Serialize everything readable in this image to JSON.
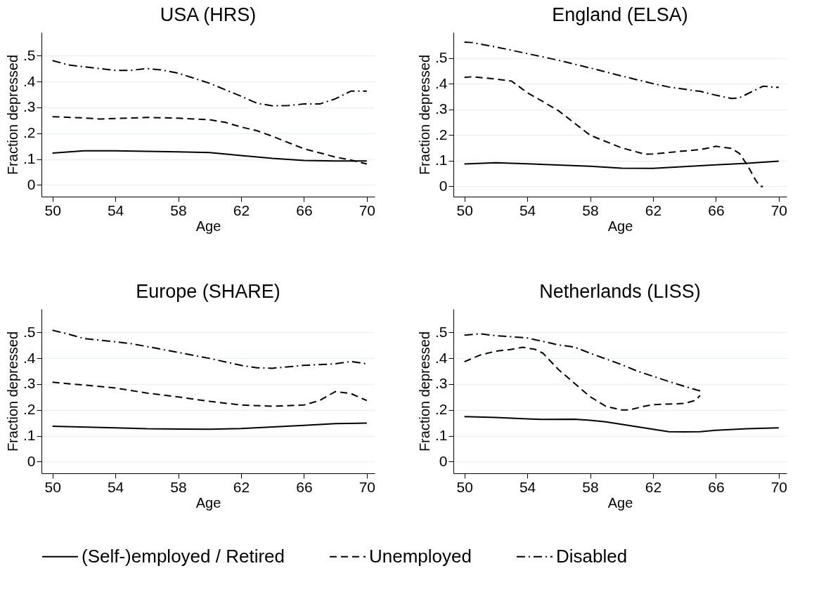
{
  "chart_data": [
    {
      "type": "line",
      "title": "USA (HRS)",
      "xlabel": "Age",
      "ylabel": "Fraction depressed",
      "xlim": [
        49.3,
        70.5
      ],
      "ylim": [
        -0.045,
        0.59
      ],
      "xticks": [
        50,
        54,
        58,
        62,
        66,
        70
      ],
      "yticks": [
        {
          "value": 0,
          "label": "0"
        },
        {
          "value": 0.1,
          "label": ".1"
        },
        {
          "value": 0.2,
          "label": ".2"
        },
        {
          "value": 0.3,
          "label": ".3"
        },
        {
          "value": 0.4,
          "label": ".4"
        },
        {
          "value": 0.5,
          "label": ".5"
        }
      ],
      "grid": "y",
      "legend": "bottom",
      "marker": "none",
      "series": [
        {
          "name": "(Self-)employed / Retired",
          "color": "#000000",
          "line_style": "solid",
          "x": [
            50,
            52,
            54,
            58,
            60,
            62,
            64,
            66,
            68,
            70
          ],
          "values": [
            0.123,
            0.132,
            0.132,
            0.128,
            0.125,
            0.114,
            0.103,
            0.095,
            0.093,
            0.093
          ]
        },
        {
          "name": "Unemployed",
          "color": "#000000",
          "line_style": "dashed",
          "x": [
            50,
            52,
            53,
            56,
            58,
            60,
            61,
            62,
            63,
            64,
            66,
            68,
            69,
            70
          ],
          "values": [
            0.264,
            0.259,
            0.255,
            0.261,
            0.258,
            0.252,
            0.242,
            0.224,
            0.21,
            0.188,
            0.14,
            0.108,
            0.096,
            0.081
          ]
        },
        {
          "name": "Disabled",
          "color": "#000000",
          "line_style": "dashdot",
          "x": [
            50,
            51,
            52,
            54,
            55,
            56,
            57,
            58,
            60,
            62,
            63,
            64,
            65,
            66,
            67,
            68,
            69,
            70
          ],
          "values": [
            0.481,
            0.464,
            0.457,
            0.443,
            0.443,
            0.45,
            0.444,
            0.432,
            0.393,
            0.343,
            0.316,
            0.306,
            0.307,
            0.313,
            0.313,
            0.333,
            0.363,
            0.363
          ]
        }
      ]
    },
    {
      "type": "line",
      "title": "England (ELSA)",
      "xlabel": "Age",
      "ylabel": "Fraction depressed",
      "xlim": [
        49.3,
        70.5
      ],
      "ylim": [
        -0.04,
        0.6
      ],
      "xticks": [
        50,
        54,
        58,
        62,
        66,
        70
      ],
      "yticks": [
        {
          "value": 0,
          "label": "0"
        },
        {
          "value": 0.1,
          "label": ".1"
        },
        {
          "value": 0.2,
          "label": ".2"
        },
        {
          "value": 0.3,
          "label": ".3"
        },
        {
          "value": 0.4,
          "label": ".4"
        },
        {
          "value": 0.5,
          "label": ".5"
        }
      ],
      "grid": "y",
      "legend": "bottom",
      "marker": "none",
      "series": [
        {
          "name": "(Self-)employed / Retired",
          "color": "#000000",
          "line_style": "solid",
          "x": [
            50,
            52,
            54,
            58,
            60,
            62,
            64,
            66,
            68,
            70
          ],
          "values": [
            0.087,
            0.092,
            0.088,
            0.078,
            0.071,
            0.07,
            0.077,
            0.084,
            0.09,
            0.098
          ]
        },
        {
          "name": "Unemployed",
          "color": "#000000",
          "line_style": "dashed",
          "x": [
            50,
            50.5,
            52,
            53,
            54,
            55,
            56,
            58,
            60,
            61.5,
            62,
            64,
            65,
            66,
            67,
            67.5,
            68,
            68.5,
            68.8,
            69
          ],
          "values": [
            0.424,
            0.427,
            0.418,
            0.41,
            0.365,
            0.33,
            0.294,
            0.199,
            0.15,
            0.125,
            0.126,
            0.138,
            0.143,
            0.156,
            0.148,
            0.128,
            0.083,
            0.027,
            0,
            0
          ]
        },
        {
          "name": "Disabled",
          "color": "#000000",
          "line_style": "dashdot",
          "x": [
            50,
            50.5,
            52,
            54,
            56,
            58,
            60,
            62,
            63,
            65,
            66,
            67,
            67.5,
            68,
            69,
            70
          ],
          "values": [
            0.562,
            0.56,
            0.543,
            0.517,
            0.491,
            0.461,
            0.43,
            0.4,
            0.387,
            0.37,
            0.355,
            0.342,
            0.345,
            0.36,
            0.39,
            0.385
          ]
        }
      ]
    },
    {
      "type": "line",
      "title": "Europe (SHARE)",
      "xlabel": "Age",
      "ylabel": "Fraction depressed",
      "xlim": [
        49.3,
        70.5
      ],
      "ylim": [
        -0.045,
        0.59
      ],
      "xticks": [
        50,
        54,
        58,
        62,
        66,
        70
      ],
      "yticks": [
        {
          "value": 0,
          "label": "0"
        },
        {
          "value": 0.1,
          "label": ".1"
        },
        {
          "value": 0.2,
          "label": ".2"
        },
        {
          "value": 0.3,
          "label": ".3"
        },
        {
          "value": 0.4,
          "label": ".4"
        },
        {
          "value": 0.5,
          "label": ".5"
        }
      ],
      "grid": "y",
      "legend": "bottom",
      "marker": "none",
      "series": [
        {
          "name": "(Self-)employed / Retired",
          "color": "#000000",
          "line_style": "solid",
          "x": [
            50,
            54,
            56,
            60,
            62,
            64,
            66,
            68,
            70
          ],
          "values": [
            0.137,
            0.131,
            0.127,
            0.125,
            0.128,
            0.134,
            0.14,
            0.147,
            0.149
          ]
        },
        {
          "name": "Unemployed",
          "color": "#000000",
          "line_style": "dashed",
          "x": [
            50,
            52,
            54,
            56,
            58,
            60,
            62,
            64,
            66,
            67,
            68,
            69,
            70
          ],
          "values": [
            0.307,
            0.296,
            0.285,
            0.265,
            0.25,
            0.233,
            0.219,
            0.214,
            0.219,
            0.236,
            0.271,
            0.263,
            0.236
          ]
        },
        {
          "name": "Disabled",
          "color": "#000000",
          "line_style": "dashdot",
          "x": [
            50,
            51,
            52,
            54,
            55,
            56,
            58,
            60,
            62,
            63,
            64,
            66,
            68,
            69,
            70
          ],
          "values": [
            0.508,
            0.493,
            0.476,
            0.463,
            0.456,
            0.445,
            0.422,
            0.399,
            0.372,
            0.363,
            0.361,
            0.372,
            0.378,
            0.387,
            0.378
          ]
        }
      ]
    },
    {
      "type": "line",
      "title": "Netherlands (LISS)",
      "xlabel": "Age",
      "ylabel": "Fraction depressed",
      "xlim": [
        49.3,
        70.5
      ],
      "ylim": [
        -0.045,
        0.59
      ],
      "xticks": [
        50,
        54,
        58,
        62,
        66,
        70
      ],
      "yticks": [
        {
          "value": 0,
          "label": "0"
        },
        {
          "value": 0.1,
          "label": ".1"
        },
        {
          "value": 0.2,
          "label": ".2"
        },
        {
          "value": 0.3,
          "label": ".3"
        },
        {
          "value": 0.4,
          "label": ".4"
        },
        {
          "value": 0.5,
          "label": ".5"
        }
      ],
      "grid": "y",
      "legend": "bottom",
      "marker": "none",
      "series": [
        {
          "name": "(Self-)employed / Retired",
          "color": "#000000",
          "line_style": "solid",
          "x": [
            50,
            52,
            54,
            55,
            57,
            58,
            59,
            60,
            62,
            63,
            64,
            65,
            66,
            68,
            70
          ],
          "values": [
            0.174,
            0.171,
            0.165,
            0.163,
            0.164,
            0.16,
            0.154,
            0.144,
            0.125,
            0.116,
            0.115,
            0.116,
            0.121,
            0.127,
            0.131
          ]
        },
        {
          "name": "Unemployed",
          "color": "#000000",
          "line_style": "dashed",
          "x": [
            50,
            51,
            52,
            53,
            53.7,
            54.5,
            55,
            56,
            58,
            59,
            60,
            60.5,
            61.5,
            62,
            64,
            64.7,
            65
          ],
          "values": [
            0.386,
            0.412,
            0.427,
            0.434,
            0.442,
            0.434,
            0.419,
            0.355,
            0.251,
            0.214,
            0.2,
            0.2,
            0.215,
            0.22,
            0.225,
            0.237,
            0.256
          ]
        },
        {
          "name": "Disabled",
          "color": "#000000",
          "line_style": "dashdot",
          "x": [
            50,
            51,
            52,
            54,
            56,
            57,
            58,
            60,
            61,
            62,
            63,
            64,
            65
          ],
          "values": [
            0.489,
            0.494,
            0.487,
            0.478,
            0.451,
            0.443,
            0.419,
            0.375,
            0.35,
            0.33,
            0.31,
            0.291,
            0.273
          ]
        }
      ]
    }
  ]
}
